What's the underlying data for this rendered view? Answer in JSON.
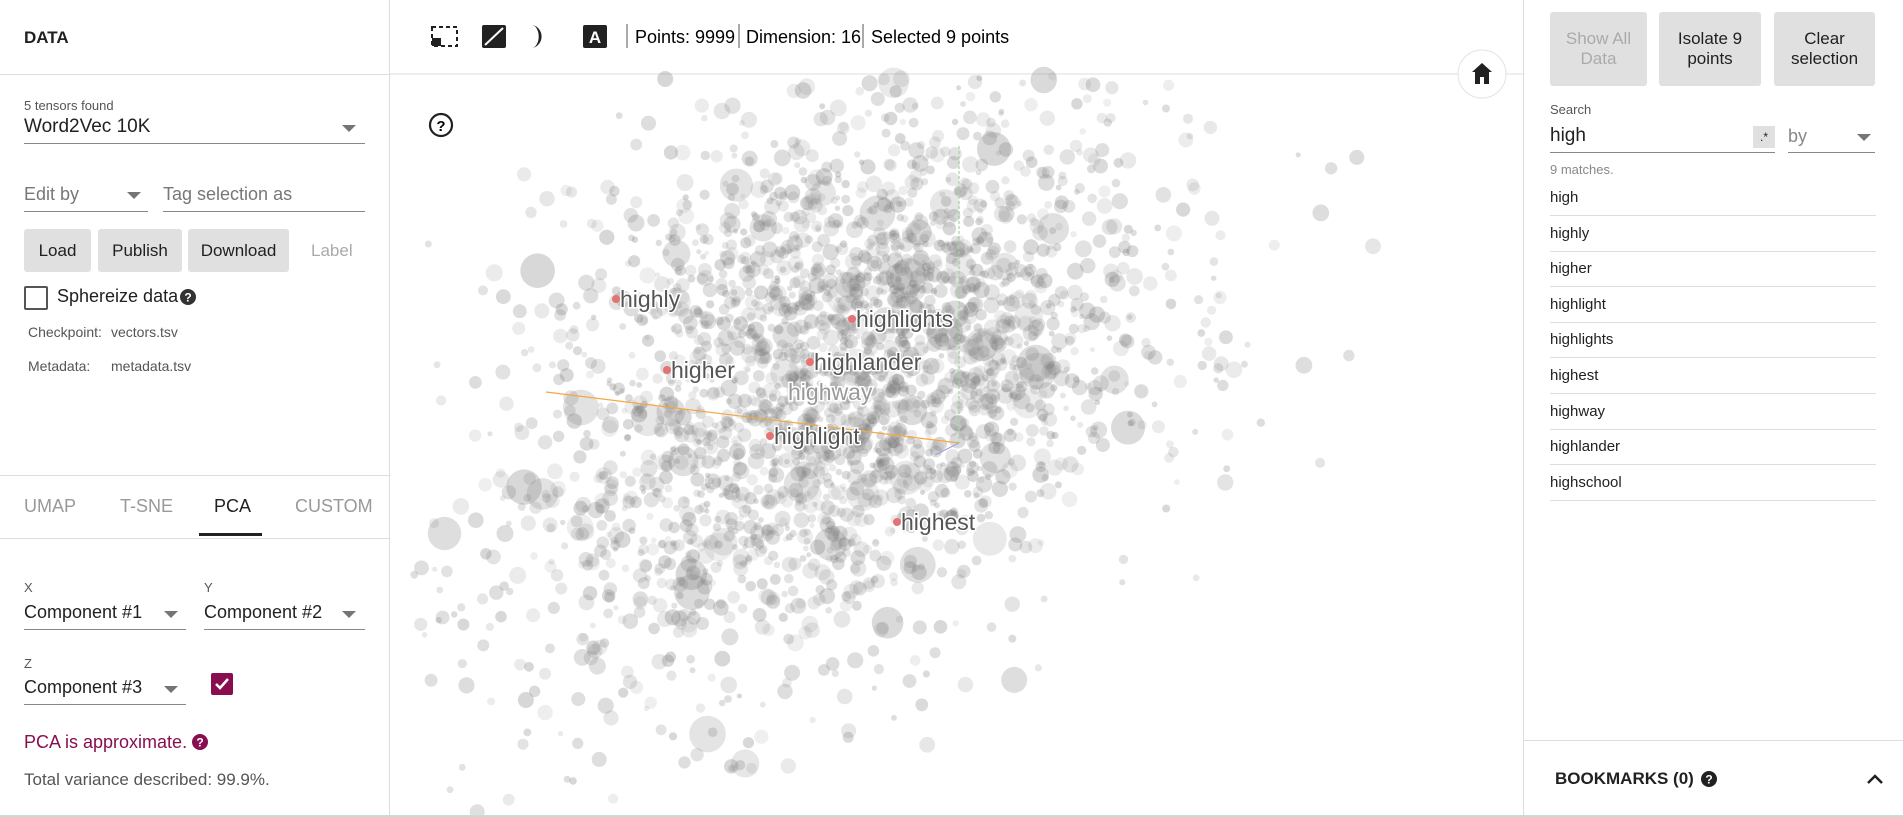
{
  "left_panel": {
    "title": "DATA",
    "tensor_count": "5 tensors found",
    "tensor": "Word2Vec 10K",
    "edit_by": "Edit by",
    "tag_placeholder": "Tag selection as",
    "buttons": [
      "Load",
      "Publish",
      "Download"
    ],
    "label_button": "Label",
    "sphereize": "Sphereize data",
    "checkpoint_label": "Checkpoint:",
    "checkpoint": "vectors.tsv",
    "metadata_label": "Metadata:",
    "metadata": "metadata.tsv",
    "tabs": [
      "UMAP",
      "T-SNE",
      "PCA",
      "CUSTOM"
    ],
    "x_label": "X",
    "x_value": "Component #1",
    "y_label": "Y",
    "y_value": "Component #2",
    "z_label": "Z",
    "z_value": "Component #3",
    "pca_note": "PCA is approximate.",
    "variance": "Total variance described: 99.9%."
  },
  "toolbar": {
    "points": "Points: 9999",
    "dimension": "Dimension: 16",
    "selected": "Selected 9 points"
  },
  "plot": {
    "labels": [
      "highly",
      "highlights",
      "higher",
      "highlander",
      "highway",
      "highlight",
      "highest"
    ]
  },
  "right_panel": {
    "buttons": [
      "Show All Data",
      "Isolate 9 points",
      "Clear selection"
    ],
    "search_label": "Search",
    "search_value": "high",
    "regex": ".*",
    "by": "by",
    "match_count": "9 matches.",
    "matches": [
      "high",
      "highly",
      "higher",
      "highlight",
      "highlights",
      "highest",
      "highway",
      "highlander",
      "highschool"
    ],
    "bookmarks": "BOOKMARKS (0)"
  }
}
